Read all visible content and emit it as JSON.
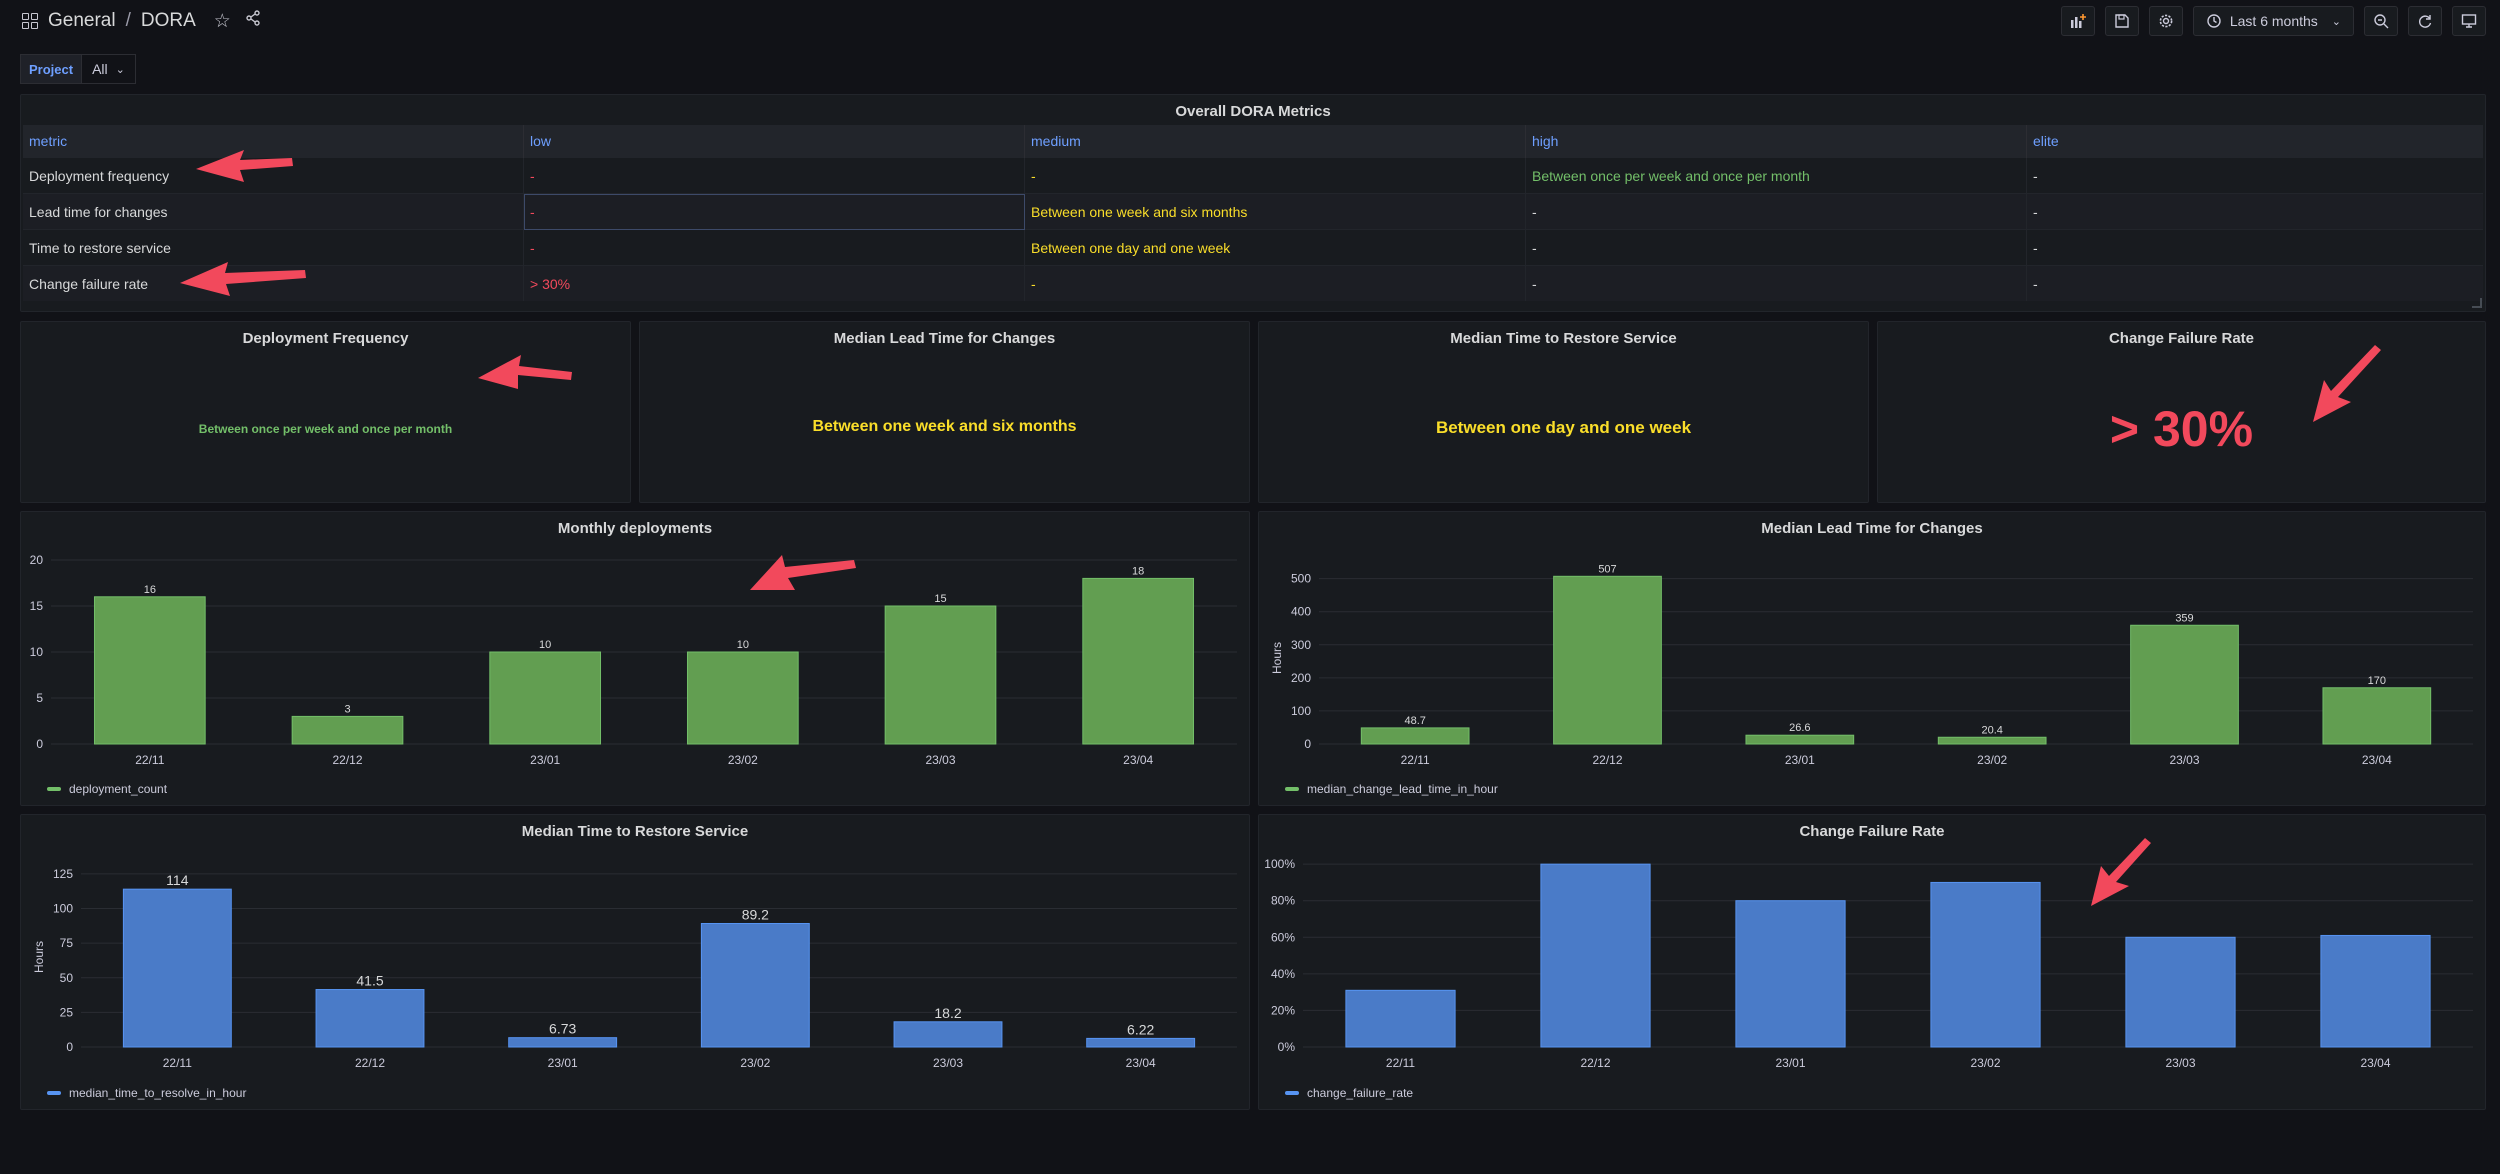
{
  "header": {
    "breadcrumb_folder": "General",
    "breadcrumb_sep": "/",
    "breadcrumb_dashboard": "DORA",
    "time_range": "Last 6 months"
  },
  "variables": {
    "project_label": "Project",
    "project_value": "All"
  },
  "overall_table": {
    "title": "Overall DORA Metrics",
    "columns": [
      "metric",
      "low",
      "medium",
      "high",
      "elite"
    ],
    "rows": [
      [
        "Deployment frequency",
        "-",
        "-",
        "Between once per week and once per month",
        "-"
      ],
      [
        "Lead time for changes",
        "-",
        "Between one week and six months",
        "-",
        "-"
      ],
      [
        "Time to restore service",
        "-",
        "Between one day and one week",
        "-",
        "-"
      ],
      [
        "Change failure rate",
        "> 30%",
        "-",
        "-",
        "-"
      ]
    ]
  },
  "stats": [
    {
      "title": "Deployment Frequency",
      "value": "Between once per week and once per month",
      "color": "#73bf69"
    },
    {
      "title": "Median Lead Time for Changes",
      "value": "Between one week and six months",
      "color": "#fade2a"
    },
    {
      "title": "Median Time to Restore Service",
      "value": "Between one day and one week",
      "color": "#fade2a"
    },
    {
      "title": "Change Failure Rate",
      "value": "> 30%",
      "color": "#f2495c"
    }
  ],
  "colors": {
    "green": "#73bf69",
    "blue": "#5794f2",
    "bar_green": "#629e51",
    "bar_blue": "#4a7bc8",
    "annotation_red": "#f2495c"
  },
  "chart_data": [
    {
      "type": "bar",
      "title": "Monthly deployments",
      "categories": [
        "22/11",
        "22/12",
        "23/01",
        "23/02",
        "23/03",
        "23/04"
      ],
      "series": [
        {
          "name": "deployment_count",
          "values": [
            16,
            3,
            10,
            10,
            15,
            18
          ]
        }
      ],
      "ylim": [
        0,
        20
      ],
      "yticks": [
        0,
        5,
        10,
        15,
        20
      ],
      "ylabel": "",
      "show_value_labels": true
    },
    {
      "type": "bar",
      "title": "Median Lead Time for Changes",
      "categories": [
        "22/11",
        "22/12",
        "23/01",
        "23/02",
        "23/03",
        "23/04"
      ],
      "series": [
        {
          "name": "median_change_lead_time_in_hour",
          "values": [
            48.7,
            507,
            26.6,
            20.4,
            359,
            170
          ]
        }
      ],
      "ylim": [
        0,
        520
      ],
      "yticks": [
        0,
        100,
        200,
        300,
        400,
        500
      ],
      "ylabel": "Hours",
      "show_value_labels": true
    },
    {
      "type": "bar",
      "title": "Median Time to Restore Service",
      "categories": [
        "22/11",
        "22/12",
        "23/01",
        "23/02",
        "23/03",
        "23/04"
      ],
      "series": [
        {
          "name": "median_time_to_resolve_in_hour",
          "values": [
            114,
            41.5,
            6.73,
            89.2,
            18.2,
            6.22
          ]
        }
      ],
      "ylim": [
        0,
        130
      ],
      "yticks": [
        0,
        25,
        50,
        75,
        100,
        125
      ],
      "ylabel": "Hours",
      "show_value_labels": true
    },
    {
      "type": "bar",
      "title": "Change Failure Rate",
      "categories": [
        "22/11",
        "22/12",
        "23/01",
        "23/02",
        "23/03",
        "23/04"
      ],
      "series": [
        {
          "name": "change_failure_rate",
          "values": [
            0.31,
            1.0,
            0.8,
            0.9,
            0.6,
            0.61
          ]
        }
      ],
      "ylim": [
        0,
        1.05
      ],
      "yticks": [
        0,
        0.2,
        0.4,
        0.6,
        0.8,
        1.0
      ],
      "ytick_labels": [
        "0%",
        "20%",
        "40%",
        "60%",
        "80%",
        "100%"
      ],
      "ylabel": "",
      "show_value_labels": false
    }
  ]
}
